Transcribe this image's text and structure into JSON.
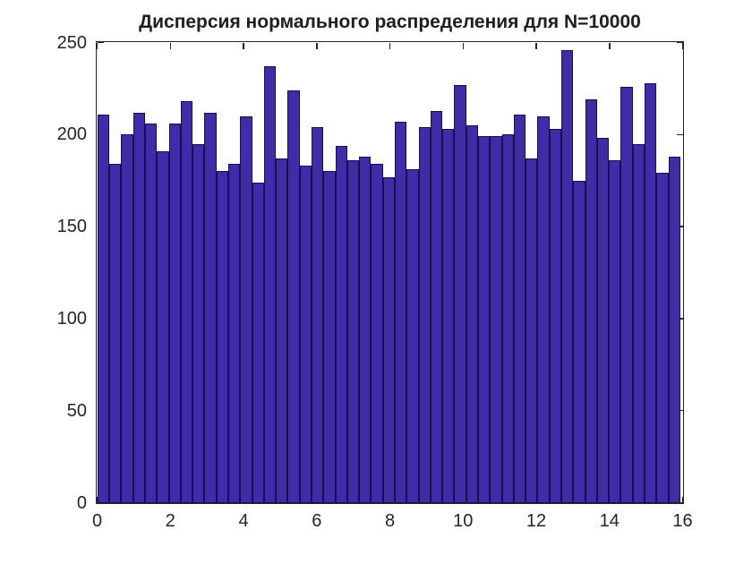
{
  "figure": {
    "background": "#FFFFFF"
  },
  "chart_data": {
    "type": "bar",
    "subtype": "histogram",
    "title": "Дисперсия нормального распределения для N=10000",
    "xlabel": "",
    "ylabel": "",
    "sample_label": "N=10000",
    "xlim": [
      0,
      16
    ],
    "ylim": [
      0,
      250
    ],
    "xticks": [
      0,
      2,
      4,
      6,
      8,
      10,
      12,
      14,
      16
    ],
    "yticks": [
      0,
      50,
      100,
      150,
      200,
      250
    ],
    "grid": false,
    "legend_position": "none",
    "n_bins": 49,
    "bin_start": 0.01,
    "bin_width": 0.325,
    "counts": [
      211,
      184,
      200,
      212,
      206,
      191,
      206,
      218,
      195,
      212,
      180,
      184,
      210,
      174,
      237,
      187,
      224,
      183,
      204,
      180,
      194,
      186,
      188,
      184,
      177,
      207,
      181,
      204,
      213,
      203,
      227,
      205,
      199,
      199,
      200,
      211,
      187,
      210,
      203,
      246,
      175,
      219,
      198,
      186,
      226,
      195,
      228,
      179,
      188
    ],
    "bar_fill": "#3E2CA8",
    "bar_edge": "#16114E",
    "axis_color": "#262626",
    "text_color": "#262626",
    "background": "#FFFFFF"
  }
}
